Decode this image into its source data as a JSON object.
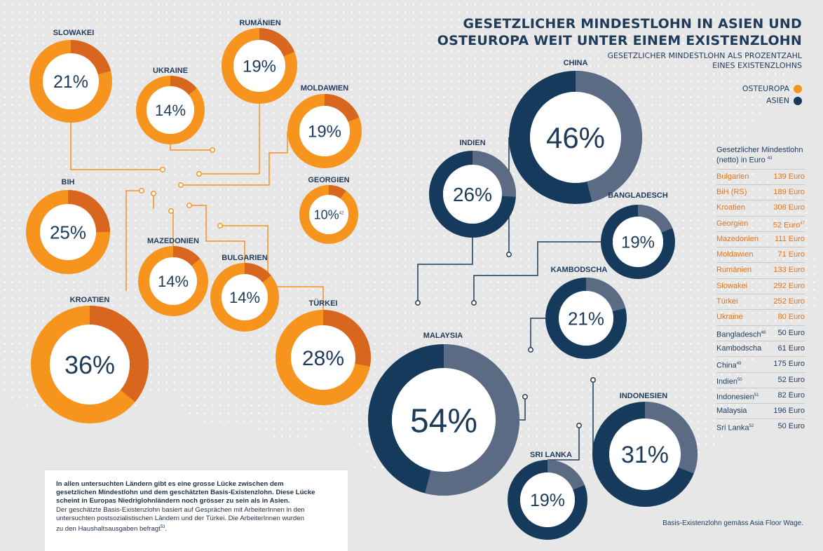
{
  "title_lines": [
    "GESETZLICHER MINDESTLOHN IN ASIEN UND",
    "OSTEUROPA WEIT UNTER EINEM EXISTENZLOHN"
  ],
  "subtitle_lines": [
    "GESETZLICHER MINDESTLOHN ALS PROZENTZAHL",
    "EINES EXISTENZLOHNS"
  ],
  "legend": [
    {
      "label": "OSTEUROPA",
      "color": "#f7941e"
    },
    {
      "label": "ASIEN",
      "color": "#163a5c"
    }
  ],
  "colors": {
    "europe_ring": "#f7941e",
    "europe_share": "#d9661e",
    "asia_ring": "#163a5c",
    "asia_share": "#5c6b84",
    "label": "#1f3b5a",
    "connector_europe": "#f7941e",
    "connector_asia": "#1f3b5a"
  },
  "chart_data": {
    "type": "donut",
    "unit": "%",
    "title": "Gesetzlicher Mindestlohn als Prozentzahl eines Existenzlohns",
    "series": [
      {
        "name": "Osteuropa",
        "countries": [
          {
            "country": "SLOWAKEI",
            "value": 21,
            "label": "21%"
          },
          {
            "country": "RUMÄNIEN",
            "value": 19,
            "label": "19%"
          },
          {
            "country": "UKRAINE",
            "value": 14,
            "label": "14%"
          },
          {
            "country": "MOLDAWIEN",
            "value": 19,
            "label": "19%"
          },
          {
            "country": "BIH",
            "value": 25,
            "label": "25%"
          },
          {
            "country": "GEORGIEN",
            "value": 10,
            "label": "10%",
            "note": "42"
          },
          {
            "country": "MAZEDONIEN",
            "value": 14,
            "label": "14%"
          },
          {
            "country": "BULGARIEN",
            "value": 14,
            "label": "14%"
          },
          {
            "country": "KROATIEN",
            "value": 36,
            "label": "36%"
          },
          {
            "country": "TÜRKEI",
            "value": 28,
            "label": "28%"
          }
        ]
      },
      {
        "name": "Asien",
        "countries": [
          {
            "country": "CHINA",
            "value": 46,
            "label": "46%"
          },
          {
            "country": "INDIEN",
            "value": 26,
            "label": "26%"
          },
          {
            "country": "BANGLADESCH",
            "value": 19,
            "label": "19%"
          },
          {
            "country": "KAMBODSCHA",
            "value": 21,
            "label": "21%"
          },
          {
            "country": "MALAYSIA",
            "value": 54,
            "label": "54%"
          },
          {
            "country": "INDONESIEN",
            "value": 31,
            "label": "31%"
          },
          {
            "country": "SRI LANKA",
            "value": 19,
            "label": "19%"
          }
        ]
      }
    ]
  },
  "table": {
    "header_lines": [
      "Gesetzlicher Mindestlohn",
      "(netto) in Euro"
    ],
    "header_note": "43",
    "rows": [
      {
        "country": "Bulgarien",
        "note": "",
        "value": "139 Euro",
        "region": "eu"
      },
      {
        "country": "BiH (RS)",
        "note": "",
        "value": "189 Euro",
        "region": "eu"
      },
      {
        "country": "Kroatien",
        "note": "",
        "value": "308 Euro",
        "region": "eu"
      },
      {
        "country": "Georgien",
        "note": "",
        "value": "52 Euro",
        "value_note": "47",
        "region": "eu"
      },
      {
        "country": "Mazedonien",
        "note": "",
        "value": "111 Euro",
        "region": "eu"
      },
      {
        "country": "Moldawien",
        "note": "",
        "value": "71 Euro",
        "region": "eu"
      },
      {
        "country": "Rumänien",
        "note": "",
        "value": "133 Euro",
        "region": "eu"
      },
      {
        "country": "Slowakei",
        "note": "",
        "value": "292 Euro",
        "region": "eu"
      },
      {
        "country": "Türkei",
        "note": "",
        "value": "252 Euro",
        "region": "eu"
      },
      {
        "country": "Ukraine",
        "note": "",
        "value": "80 Euro",
        "region": "eu"
      },
      {
        "country": "Bangladesch",
        "note": "48",
        "value": "50 Euro",
        "region": "as"
      },
      {
        "country": "Kambodscha",
        "note": "",
        "value": "61 Euro",
        "region": "as"
      },
      {
        "country": "China",
        "note": "49",
        "value": "175 Euro",
        "region": "as"
      },
      {
        "country": "Indien",
        "note": "50",
        "value": "52 Euro",
        "region": "as"
      },
      {
        "country": "Indonesien",
        "note": "51",
        "value": "82 Euro",
        "region": "as"
      },
      {
        "country": "Malaysia",
        "note": "",
        "value": "196 Euro",
        "region": "as"
      },
      {
        "country": "Sri Lanka",
        "note": "52",
        "value": "50 Euro",
        "region": "as"
      }
    ]
  },
  "note_box": {
    "bold_lines": [
      "In allen untersuchten Ländern gibt es eine grosse Lücke zwischen dem",
      "gesetzlichen Mindestlohn und dem geschätzten Basis-Existenzlohn. Diese Lücke",
      "scheint in Europas Niedriglohnländern noch grösser zu sein als in Asien."
    ],
    "lines": [
      "Der geschätzte Basis-Existenzlohn basiert auf Gesprächen mit ArbeiterInnen in den",
      "untersuchten postsozialistischen Ländern und der Türkei. Die ArbeiterInnen wurden",
      "zu den Haushaltsausgaben befragt"
    ],
    "last_note": "53"
  },
  "footer": "Basis-Existenzlohn gemäss Asia Floor Wage."
}
